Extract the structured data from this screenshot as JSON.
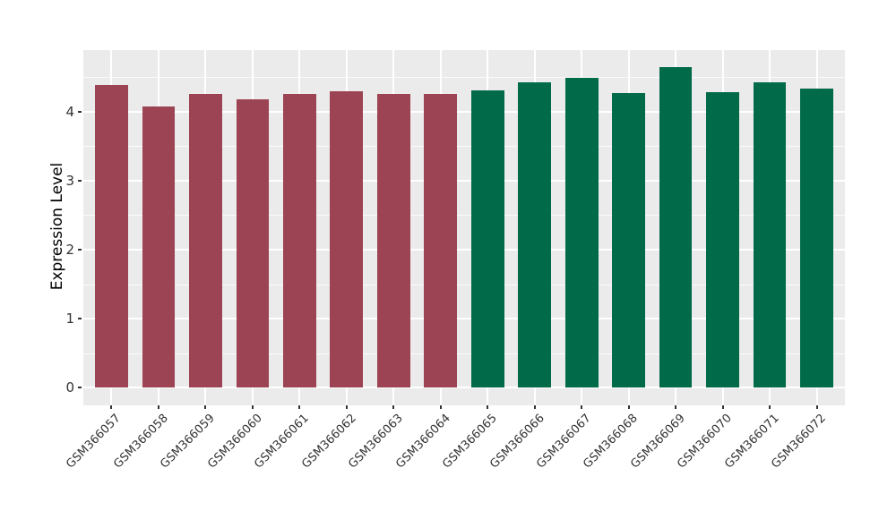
{
  "chart_data": {
    "type": "bar",
    "title": "",
    "xlabel": "",
    "ylabel": "Expression Level",
    "ylim": [
      -0.26,
      4.89
    ],
    "yticks_major": [
      0,
      1,
      2,
      3,
      4
    ],
    "ytick_labels": [
      "0",
      "1",
      "2",
      "3",
      "4"
    ],
    "yticks_minor": [
      0.5,
      1.5,
      2.5,
      3.5,
      4.5
    ],
    "grid": "on",
    "legend_position": "none",
    "panel_background": "#EBEBEB",
    "grid_color": "#FFFFFF",
    "axis_text_color": "#333333",
    "axis_title_color": "#000000",
    "group_colors": {
      "samples_57_64": "#9C4453",
      "samples_65_72": "#016A49"
    },
    "categories": [
      "GSM366057",
      "GSM366058",
      "GSM366059",
      "GSM366060",
      "GSM366061",
      "GSM366062",
      "GSM366063",
      "GSM366064",
      "GSM366065",
      "GSM366066",
      "GSM366067",
      "GSM366068",
      "GSM366069",
      "GSM366070",
      "GSM366071",
      "GSM366072"
    ],
    "bars": [
      {
        "label": "GSM366057",
        "value": 4.39,
        "color": "#9C4453"
      },
      {
        "label": "GSM366058",
        "value": 4.07,
        "color": "#9C4453"
      },
      {
        "label": "GSM366059",
        "value": 4.26,
        "color": "#9C4453"
      },
      {
        "label": "GSM366060",
        "value": 4.18,
        "color": "#9C4453"
      },
      {
        "label": "GSM366061",
        "value": 4.26,
        "color": "#9C4453"
      },
      {
        "label": "GSM366062",
        "value": 4.3,
        "color": "#9C4453"
      },
      {
        "label": "GSM366063",
        "value": 4.26,
        "color": "#9C4453"
      },
      {
        "label": "GSM366064",
        "value": 4.26,
        "color": "#9C4453"
      },
      {
        "label": "GSM366065",
        "value": 4.31,
        "color": "#016A49"
      },
      {
        "label": "GSM366066",
        "value": 4.42,
        "color": "#016A49"
      },
      {
        "label": "GSM366067",
        "value": 4.49,
        "color": "#016A49"
      },
      {
        "label": "GSM366068",
        "value": 4.27,
        "color": "#016A49"
      },
      {
        "label": "GSM366069",
        "value": 4.65,
        "color": "#016A49"
      },
      {
        "label": "GSM366070",
        "value": 4.28,
        "color": "#016A49"
      },
      {
        "label": "GSM366071",
        "value": 4.42,
        "color": "#016A49"
      },
      {
        "label": "GSM366072",
        "value": 4.33,
        "color": "#016A49"
      }
    ]
  }
}
